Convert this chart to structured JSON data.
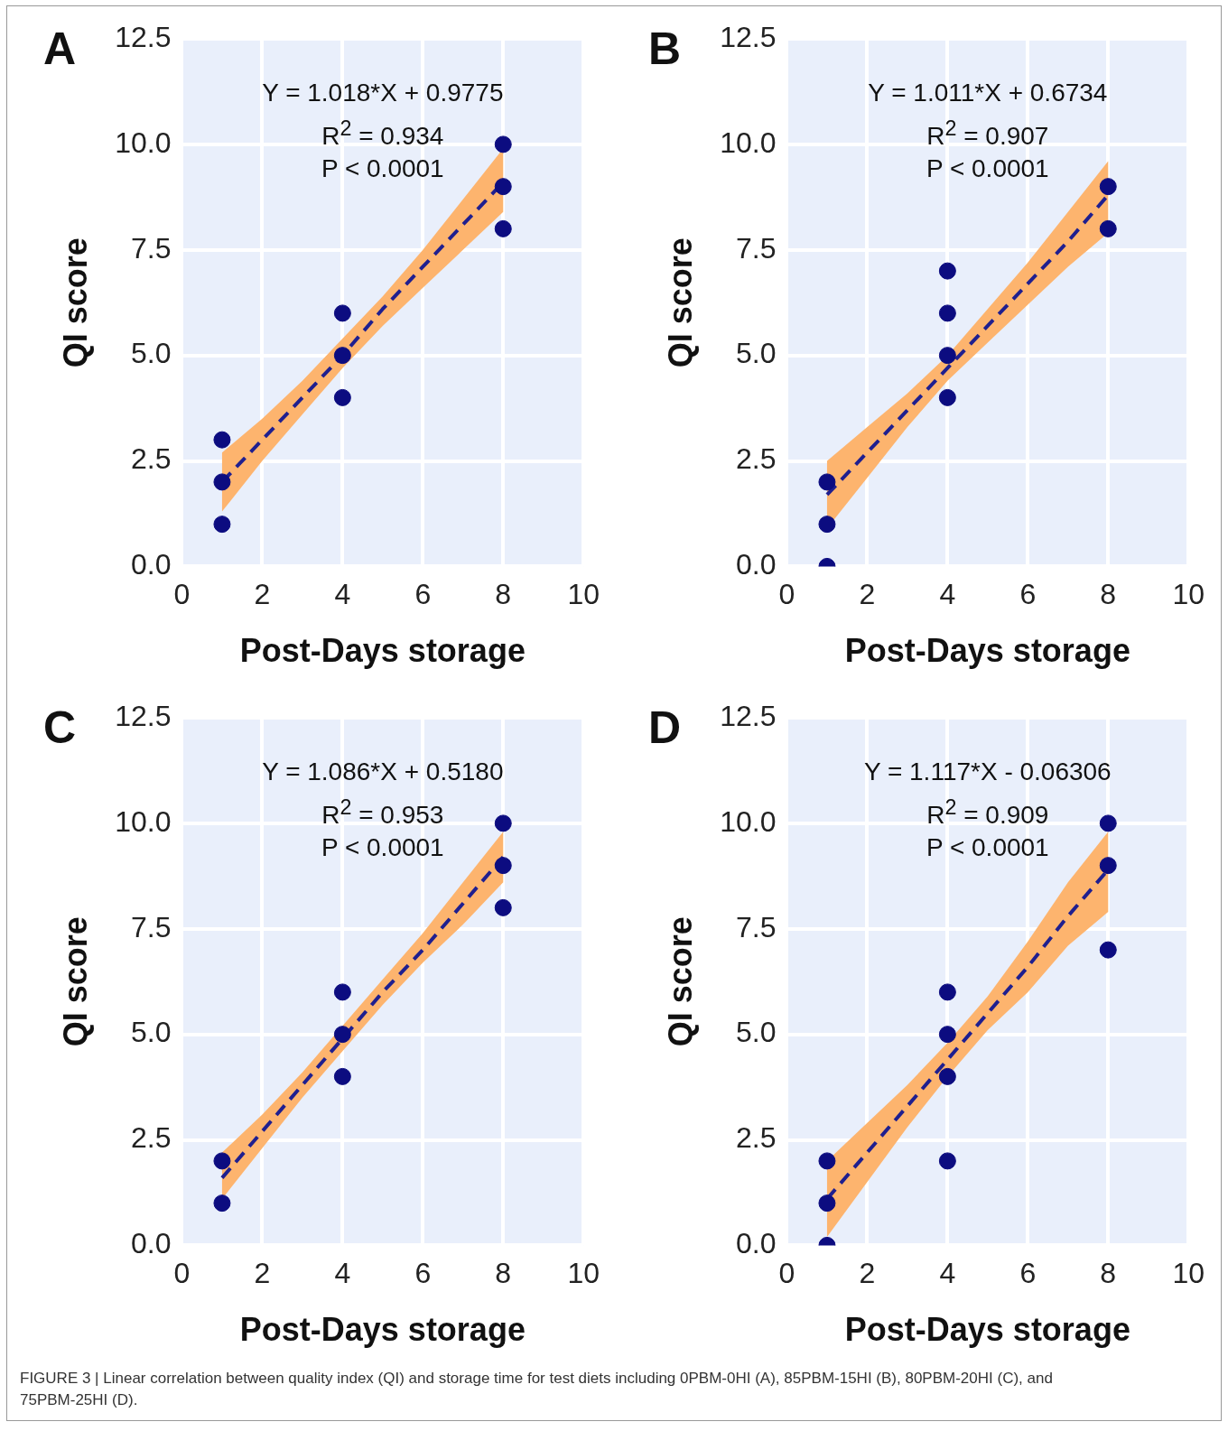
{
  "chart_data": [
    {
      "type": "scatter",
      "title": "A",
      "xlabel": "Post-Days storage",
      "ylabel": "QI score",
      "xlim": [
        0,
        10
      ],
      "ylim": [
        0,
        12.5
      ],
      "xticks": [
        0,
        2,
        4,
        6,
        8,
        10
      ],
      "yticks": [
        {
          "value": 0,
          "label": "0.0"
        },
        {
          "value": 2.5,
          "label": "2.5"
        },
        {
          "value": 5,
          "label": "5.0"
        },
        {
          "value": 7.5,
          "label": "7.5"
        },
        {
          "value": 10,
          "label": "10.0"
        },
        {
          "value": 12.5,
          "label": "12.5"
        }
      ],
      "grid": true,
      "legend": false,
      "annotations": [
        "Y = 1.018*X + 0.9775",
        "R$^{2}$ = 0.934",
        "P < 0.0001"
      ],
      "series": [
        {
          "type": "line",
          "color": "#1f1f8f",
          "line_style": "dashed",
          "marker": "none",
          "x": [
            1,
            2,
            3,
            4,
            5,
            6,
            7,
            8
          ],
          "values": [
            2.0,
            3.0,
            4.0,
            5.0,
            6.1,
            7.1,
            8.1,
            9.1
          ],
          "lower": [
            1.3,
            2.5,
            3.6,
            4.7,
            5.7,
            6.6,
            7.5,
            8.4
          ],
          "upper": [
            2.7,
            3.5,
            4.4,
            5.4,
            6.4,
            7.5,
            8.7,
            9.9
          ]
        },
        {
          "type": "scatter",
          "color": "#0c0c80",
          "marker": "circle",
          "x": [
            1,
            1,
            1,
            4,
            4,
            4,
            8,
            8,
            8
          ],
          "values": [
            3,
            2,
            1,
            6,
            5,
            4,
            10,
            9,
            8
          ]
        }
      ]
    },
    {
      "type": "scatter",
      "title": "B",
      "xlabel": "Post-Days storage",
      "ylabel": "QI score",
      "xlim": [
        0,
        10
      ],
      "ylim": [
        0,
        12.5
      ],
      "xticks": [
        0,
        2,
        4,
        6,
        8,
        10
      ],
      "yticks": [
        {
          "value": 0,
          "label": "0.0"
        },
        {
          "value": 2.5,
          "label": "2.5"
        },
        {
          "value": 5,
          "label": "5.0"
        },
        {
          "value": 7.5,
          "label": "7.5"
        },
        {
          "value": 10,
          "label": "10.0"
        },
        {
          "value": 12.5,
          "label": "12.5"
        }
      ],
      "grid": true,
      "legend": false,
      "annotations": [
        "Y = 1.011*X + 0.6734",
        "R$^{2}$ = 0.907",
        "P < 0.0001"
      ],
      "series": [
        {
          "type": "line",
          "color": "#1f1f8f",
          "line_style": "dashed",
          "marker": "none",
          "x": [
            1,
            2,
            3,
            4,
            5,
            6,
            7,
            8
          ],
          "values": [
            1.7,
            2.7,
            3.7,
            4.7,
            5.7,
            6.7,
            7.7,
            8.8
          ],
          "lower": [
            0.9,
            2.1,
            3.3,
            4.4,
            5.3,
            6.2,
            7.1,
            7.9
          ],
          "upper": [
            2.5,
            3.3,
            4.1,
            5.0,
            6.1,
            7.2,
            8.4,
            9.6
          ]
        },
        {
          "type": "scatter",
          "color": "#0c0c80",
          "marker": "circle",
          "x": [
            1,
            1,
            1,
            4,
            4,
            4,
            4,
            8,
            8
          ],
          "values": [
            2,
            1,
            0,
            7,
            6,
            5,
            4,
            9,
            8
          ]
        }
      ]
    },
    {
      "type": "scatter",
      "title": "C",
      "xlabel": "Post-Days storage",
      "ylabel": "QI score",
      "xlim": [
        0,
        10
      ],
      "ylim": [
        0,
        12.5
      ],
      "xticks": [
        0,
        2,
        4,
        6,
        8,
        10
      ],
      "yticks": [
        {
          "value": 0,
          "label": "0.0"
        },
        {
          "value": 2.5,
          "label": "2.5"
        },
        {
          "value": 5,
          "label": "5.0"
        },
        {
          "value": 7.5,
          "label": "7.5"
        },
        {
          "value": 10,
          "label": "10.0"
        },
        {
          "value": 12.5,
          "label": "12.5"
        }
      ],
      "grid": true,
      "legend": false,
      "annotations": [
        "Y = 1.086*X + 0.5180",
        "R$^{2}$ = 0.953",
        "P < 0.0001"
      ],
      "series": [
        {
          "type": "line",
          "color": "#1f1f8f",
          "line_style": "dashed",
          "marker": "none",
          "x": [
            1,
            2,
            3,
            4,
            5,
            6,
            7,
            8
          ],
          "values": [
            1.6,
            2.7,
            3.8,
            4.9,
            6.0,
            7.0,
            8.1,
            9.2
          ],
          "lower": [
            1.1,
            2.3,
            3.5,
            4.6,
            5.7,
            6.7,
            7.6,
            8.6
          ],
          "upper": [
            2.2,
            3.1,
            4.1,
            5.2,
            6.3,
            7.4,
            8.6,
            9.8
          ]
        },
        {
          "type": "scatter",
          "color": "#0c0c80",
          "marker": "circle",
          "x": [
            1,
            1,
            4,
            4,
            4,
            8,
            8,
            8
          ],
          "values": [
            2,
            1,
            6,
            5,
            4,
            10,
            9,
            8
          ]
        }
      ]
    },
    {
      "type": "scatter",
      "title": "D",
      "xlabel": "Post-Days storage",
      "ylabel": "QI score",
      "xlim": [
        0,
        10
      ],
      "ylim": [
        0,
        12.5
      ],
      "xticks": [
        0,
        2,
        4,
        6,
        8,
        10
      ],
      "yticks": [
        {
          "value": 0,
          "label": "0.0"
        },
        {
          "value": 2.5,
          "label": "2.5"
        },
        {
          "value": 5,
          "label": "5.0"
        },
        {
          "value": 7.5,
          "label": "7.5"
        },
        {
          "value": 10,
          "label": "10.0"
        },
        {
          "value": 12.5,
          "label": "12.5"
        }
      ],
      "grid": true,
      "legend": false,
      "annotations": [
        "Y = 1.117*X - 0.06306",
        "R$^{2}$ = 0.909",
        "P < 0.0001",
        "FIGURE 3 | Linear correlation between quality index (QI) and storage time for test diets including 0PBM-0HI (A), 85PBM-15HI (B), 80PBM-20HI (C), and 75PBM-25HI (D)."
      ],
      "series": [
        {
          "type": "line",
          "color": "#1f1f8f",
          "line_style": "dashed",
          "marker": "none",
          "x": [
            1,
            2,
            3,
            4,
            5,
            6,
            7,
            8
          ],
          "values": [
            1.1,
            2.2,
            3.3,
            4.4,
            5.5,
            6.6,
            7.8,
            8.9
          ],
          "lower": [
            0.2,
            1.5,
            2.8,
            4.0,
            5.1,
            6.0,
            7.1,
            7.9
          ],
          "upper": [
            2.0,
            2.9,
            3.8,
            4.8,
            5.9,
            7.2,
            8.6,
            9.8
          ]
        },
        {
          "type": "scatter",
          "color": "#0c0c80",
          "marker": "circle",
          "x": [
            1,
            1,
            1,
            4,
            4,
            4,
            4,
            8,
            8,
            8
          ],
          "values": [
            2,
            1,
            0,
            6,
            5,
            4,
            2,
            10,
            9,
            7
          ]
        }
      ]
    }
  ]
}
